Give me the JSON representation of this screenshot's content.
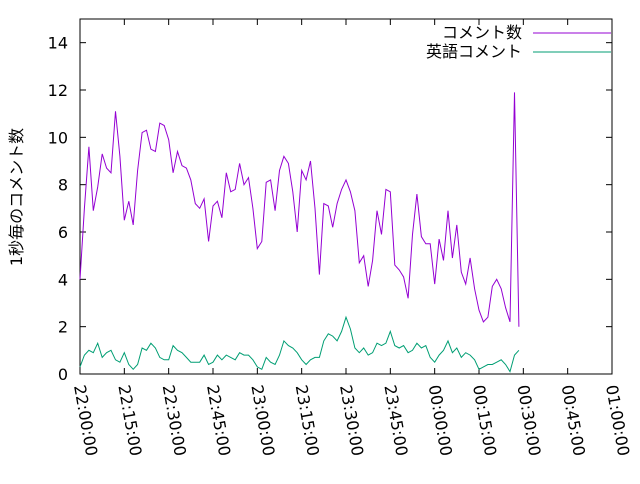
{
  "chart_data": {
    "type": "line",
    "ylabel": "1秒毎のコメント数",
    "xlim": [
      "22:00:00",
      "01:00:00"
    ],
    "ylim": [
      0,
      15
    ],
    "grid": false,
    "legend_position": "top-right",
    "xticks": [
      "22:00:00",
      "22:15:00",
      "22:30:00",
      "22:45:00",
      "23:00:00",
      "23:15:00",
      "23:30:00",
      "23:45:00",
      "00:00:00",
      "00:15:00",
      "00:30:00",
      "00:45:00",
      "01:00:00"
    ],
    "yticks": [
      0,
      2,
      4,
      6,
      8,
      10,
      12,
      14
    ],
    "sample_interval_minutes": 1.5,
    "series": [
      {
        "name": "コメント数",
        "color": "#9400d3",
        "values": [
          4.0,
          7.0,
          9.6,
          6.9,
          7.9,
          9.3,
          8.7,
          8.5,
          11.1,
          9.2,
          6.5,
          7.3,
          6.3,
          8.6,
          10.2,
          10.3,
          9.5,
          9.4,
          10.6,
          10.5,
          9.9,
          8.5,
          9.4,
          8.8,
          8.7,
          8.2,
          7.2,
          7.0,
          7.4,
          5.6,
          7.1,
          7.3,
          6.6,
          8.5,
          7.7,
          7.8,
          8.9,
          8.0,
          8.3,
          7.0,
          5.3,
          5.6,
          8.1,
          8.2,
          6.9,
          8.6,
          9.2,
          8.9,
          7.7,
          6.0,
          8.6,
          8.2,
          9.0,
          7.0,
          4.2,
          7.2,
          7.1,
          6.2,
          7.2,
          7.8,
          8.2,
          7.7,
          6.9,
          4.7,
          5.0,
          3.7,
          4.8,
          6.9,
          5.9,
          7.8,
          7.7,
          4.6,
          4.4,
          4.1,
          3.2,
          5.9,
          7.6,
          5.8,
          5.5,
          5.5,
          3.8,
          5.7,
          4.8,
          6.9,
          4.9,
          6.3,
          4.3,
          3.8,
          4.9,
          3.6,
          2.7,
          2.2,
          2.4,
          3.7,
          4.0,
          3.6,
          2.8,
          2.2,
          11.9,
          2.0
        ]
      },
      {
        "name": "英語コメント",
        "color": "#009e73",
        "values": [
          0.3,
          0.8,
          1.0,
          0.9,
          1.3,
          0.7,
          0.9,
          1.0,
          0.6,
          0.5,
          0.9,
          0.4,
          0.2,
          0.4,
          1.1,
          1.0,
          1.3,
          1.1,
          0.7,
          0.6,
          0.6,
          1.2,
          1.0,
          0.9,
          0.7,
          0.5,
          0.5,
          0.5,
          0.8,
          0.4,
          0.5,
          0.8,
          0.6,
          0.8,
          0.7,
          0.6,
          0.9,
          0.8,
          0.8,
          0.6,
          0.3,
          0.2,
          0.7,
          0.5,
          0.4,
          0.8,
          1.4,
          1.2,
          1.1,
          0.9,
          0.6,
          0.4,
          0.6,
          0.7,
          0.7,
          1.4,
          1.7,
          1.6,
          1.4,
          1.8,
          2.4,
          1.9,
          1.1,
          0.9,
          1.1,
          0.8,
          0.9,
          1.3,
          1.2,
          1.3,
          1.8,
          1.2,
          1.1,
          1.2,
          0.9,
          1.0,
          1.3,
          1.1,
          1.2,
          0.7,
          0.5,
          0.8,
          1.0,
          1.4,
          0.9,
          1.1,
          0.7,
          0.9,
          0.8,
          0.6,
          0.2,
          0.3,
          0.4,
          0.4,
          0.5,
          0.6,
          0.4,
          0.1,
          0.8,
          1.0
        ]
      }
    ]
  }
}
